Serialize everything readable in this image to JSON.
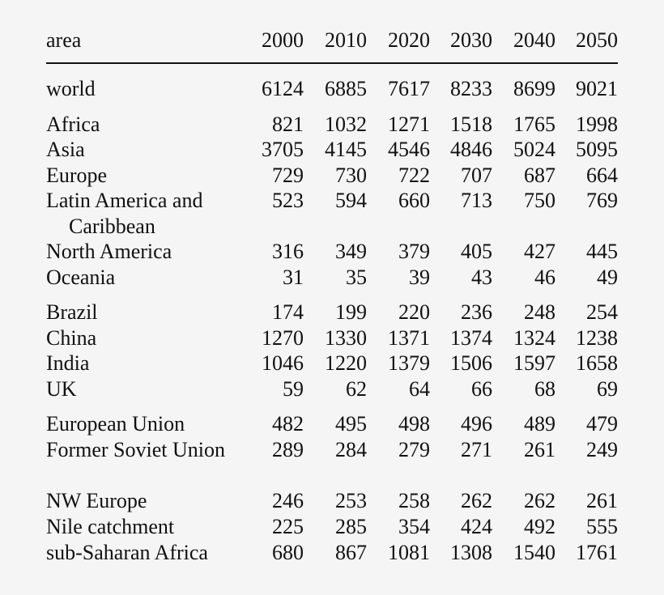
{
  "table": {
    "columns": [
      "area",
      "2000",
      "2010",
      "2020",
      "2030",
      "2040",
      "2050"
    ],
    "groups": [
      [
        {
          "area": "world",
          "values": [
            "6124",
            "6885",
            "7617",
            "8233",
            "8699",
            "9021"
          ]
        }
      ],
      [
        {
          "area": "Africa",
          "values": [
            "821",
            "1032",
            "1271",
            "1518",
            "1765",
            "1998"
          ]
        },
        {
          "area": "Asia",
          "values": [
            "3705",
            "4145",
            "4546",
            "4846",
            "5024",
            "5095"
          ]
        },
        {
          "area": "Europe",
          "values": [
            "729",
            "730",
            "722",
            "707",
            "687",
            "664"
          ]
        },
        {
          "area": "Latin America and Caribbean",
          "values": [
            "523",
            "594",
            "660",
            "713",
            "750",
            "769"
          ]
        },
        {
          "area": "North America",
          "values": [
            "316",
            "349",
            "379",
            "405",
            "427",
            "445"
          ]
        },
        {
          "area": "Oceania",
          "values": [
            "31",
            "35",
            "39",
            "43",
            "46",
            "49"
          ]
        }
      ],
      [
        {
          "area": "Brazil",
          "values": [
            "174",
            "199",
            "220",
            "236",
            "248",
            "254"
          ]
        },
        {
          "area": "China",
          "values": [
            "1270",
            "1330",
            "1371",
            "1374",
            "1324",
            "1238"
          ]
        },
        {
          "area": "India",
          "values": [
            "1046",
            "1220",
            "1379",
            "1506",
            "1597",
            "1658"
          ]
        },
        {
          "area": "UK",
          "values": [
            "59",
            "62",
            "64",
            "66",
            "68",
            "69"
          ]
        }
      ],
      [
        {
          "area": "European Union",
          "values": [
            "482",
            "495",
            "498",
            "496",
            "489",
            "479"
          ]
        },
        {
          "area": "Former Soviet Union",
          "values": [
            "289",
            "284",
            "279",
            "271",
            "261",
            "249"
          ]
        },
        {
          "area": "NW Europe",
          "values": [
            "246",
            "253",
            "258",
            "262",
            "262",
            "261"
          ]
        },
        {
          "area": "Nile catchment",
          "values": [
            "225",
            "285",
            "354",
            "424",
            "492",
            "555"
          ]
        },
        {
          "area": "sub-Saharan Africa",
          "values": [
            "680",
            "867",
            "1081",
            "1308",
            "1540",
            "1761"
          ]
        }
      ]
    ]
  }
}
